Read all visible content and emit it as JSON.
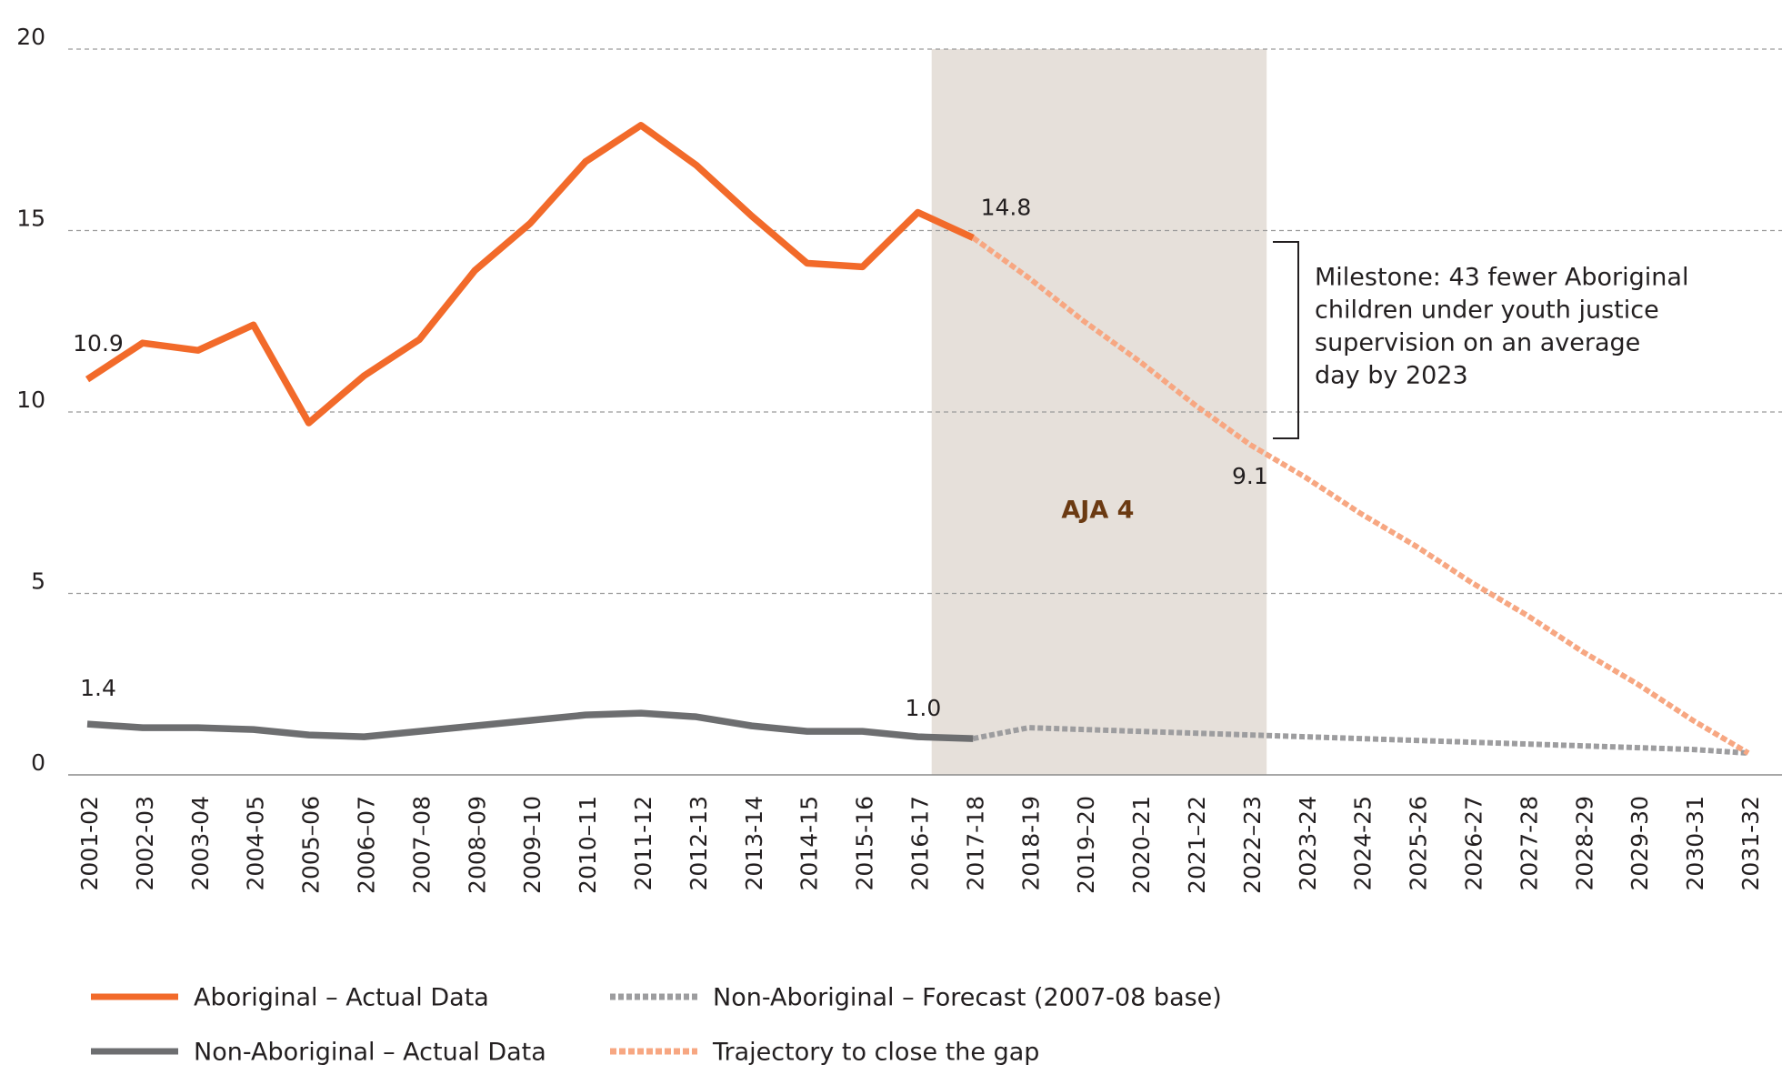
{
  "chart_data": {
    "type": "line",
    "categories": [
      "2001-02",
      "2002-03",
      "2003-04",
      "2004-05",
      "2005–06",
      "2006–07",
      "2007–08",
      "2008–09",
      "2009–10",
      "2010–11",
      "2011-12",
      "2012-13",
      "2013-14",
      "2014-15",
      "2015-16",
      "2016-17",
      "2017-18",
      "2018-19",
      "2019–20",
      "2020–21",
      "2021–22",
      "2022–23",
      "2023-24",
      "2024-25",
      "2025-26",
      "2026-27",
      "2027-28",
      "2028-29",
      "2029-30",
      "2030-31",
      "2031-32"
    ],
    "ylim": [
      0,
      20
    ],
    "yticks": [
      0,
      5,
      10,
      15,
      20
    ],
    "grid": true,
    "series": [
      {
        "name": "Aboriginal – Actual Data",
        "color": "#f26a2a",
        "style": "solid",
        "values": [
          10.9,
          11.9,
          11.7,
          12.4,
          9.7,
          11.0,
          12.0,
          13.9,
          15.2,
          16.9,
          17.9,
          16.8,
          15.4,
          14.1,
          14.0,
          15.5,
          14.8,
          null,
          null,
          null,
          null,
          null,
          null,
          null,
          null,
          null,
          null,
          null,
          null,
          null,
          null
        ],
        "value_labels": [
          "10.9",
          null,
          null,
          null,
          null,
          null,
          null,
          null,
          null,
          null,
          null,
          null,
          null,
          null,
          null,
          null,
          "14.8",
          null,
          null,
          null,
          null,
          null,
          null,
          null,
          null,
          null,
          null,
          null,
          null,
          null,
          null
        ]
      },
      {
        "name": "Non-Aboriginal – Actual Data",
        "color": "#6d6e70",
        "style": "solid",
        "values": [
          1.4,
          1.3,
          1.3,
          1.25,
          1.1,
          1.05,
          1.2,
          1.35,
          1.5,
          1.65,
          1.7,
          1.6,
          1.35,
          1.2,
          1.2,
          1.05,
          1.0,
          null,
          null,
          null,
          null,
          null,
          null,
          null,
          null,
          null,
          null,
          null,
          null,
          null,
          null
        ],
        "value_labels": [
          "1.4",
          null,
          null,
          null,
          null,
          null,
          null,
          null,
          null,
          null,
          null,
          null,
          null,
          null,
          null,
          null,
          "1.0",
          null,
          null,
          null,
          null,
          null,
          null,
          null,
          null,
          null,
          null,
          null,
          null,
          null,
          null
        ]
      },
      {
        "name": "Non-Aboriginal – Forecast (2007-08 base)",
        "color": "#9d9d9f",
        "style": "dotted",
        "values": [
          null,
          null,
          null,
          null,
          null,
          null,
          null,
          null,
          null,
          null,
          null,
          null,
          null,
          null,
          null,
          null,
          1.0,
          1.3,
          1.25,
          1.2,
          1.15,
          1.1,
          1.05,
          1.0,
          0.95,
          0.9,
          0.85,
          0.8,
          0.75,
          0.7,
          0.6
        ]
      },
      {
        "name": "Trajectory to close the gap",
        "color": "#f7a782",
        "style": "dashed",
        "values": [
          null,
          null,
          null,
          null,
          null,
          null,
          null,
          null,
          null,
          null,
          null,
          null,
          null,
          null,
          null,
          null,
          14.8,
          13.7,
          12.5,
          11.4,
          10.2,
          9.1,
          8.2,
          7.2,
          6.3,
          5.3,
          4.4,
          3.4,
          2.5,
          1.5,
          0.6
        ],
        "value_labels": [
          null,
          null,
          null,
          null,
          null,
          null,
          null,
          null,
          null,
          null,
          null,
          null,
          null,
          null,
          null,
          null,
          null,
          null,
          null,
          null,
          null,
          "9.1",
          null,
          null,
          null,
          null,
          null,
          null,
          null,
          null,
          null
        ]
      }
    ],
    "shaded_region": {
      "label": "AJA 4",
      "color": "#e6e0da"
    },
    "annotation": {
      "lines": [
        "Milestone: 43 fewer Aboriginal",
        "children under youth justice",
        "supervision on an average",
        "day by 2023"
      ]
    }
  }
}
